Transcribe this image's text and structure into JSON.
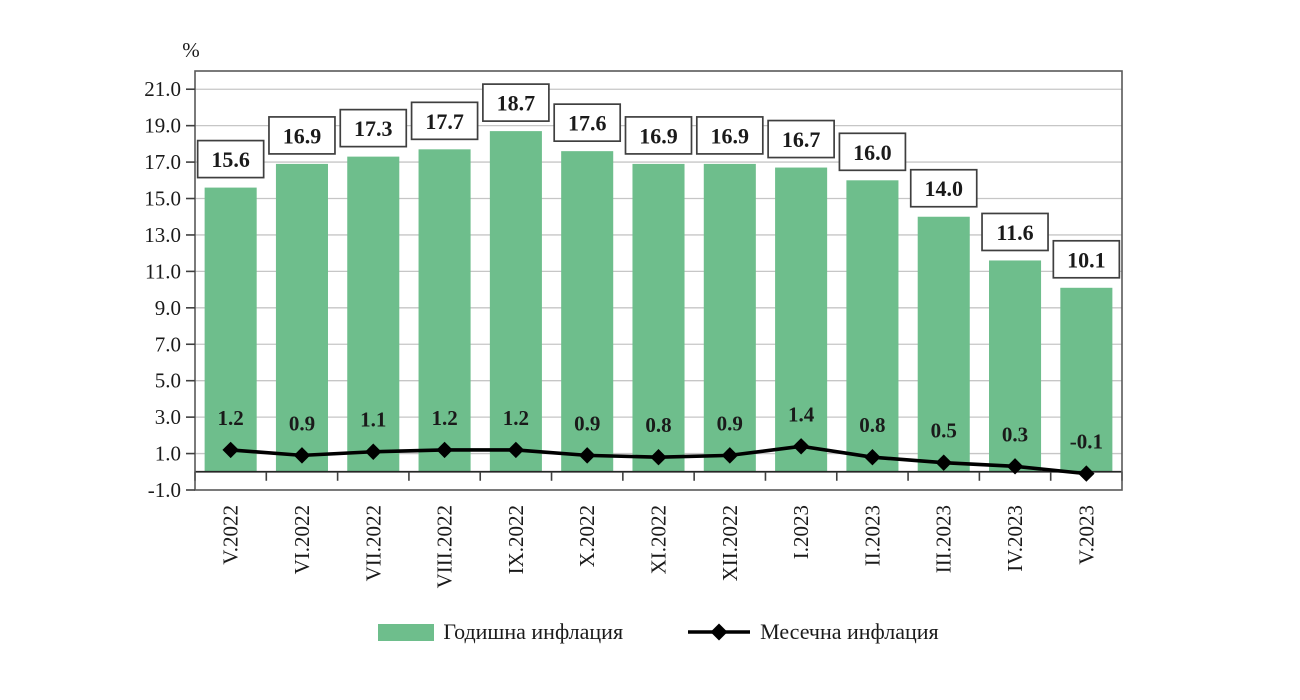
{
  "chart_data": {
    "type": "bar",
    "title": "",
    "categories": [
      "V.2022",
      "VI.2022",
      "VII.2022",
      "VIII.2022",
      "IX.2022",
      "X.2022",
      "XI.2022",
      "XII.2022",
      "I.2023",
      "II.2023",
      "III.2023",
      "IV.2023",
      "V.2023"
    ],
    "series": [
      {
        "name": "Годишна инфлация",
        "type": "bar",
        "color": "#6ebe8c",
        "values": [
          15.6,
          16.9,
          17.3,
          17.7,
          18.7,
          17.6,
          16.9,
          16.9,
          16.7,
          16.0,
          14.0,
          11.6,
          10.1
        ],
        "data_labels": [
          "15.6",
          "16.9",
          "17.3",
          "17.7",
          "18.7",
          "17.6",
          "16.9",
          "16.9",
          "16.7",
          "16.0",
          "14.0",
          "11.6",
          "10.1"
        ],
        "data_label_style": "boxed"
      },
      {
        "name": "Месечна инфлация",
        "type": "line",
        "color": "#000000",
        "marker": "diamond",
        "values": [
          1.2,
          0.9,
          1.1,
          1.2,
          1.2,
          0.9,
          0.8,
          0.9,
          1.4,
          0.8,
          0.5,
          0.3,
          -0.1
        ],
        "data_labels": [
          "1.2",
          "0.9",
          "1.1",
          "1.2",
          "1.2",
          "0.9",
          "0.8",
          "0.9",
          "1.4",
          "0.8",
          "0.5",
          "0.3",
          "-0.1"
        ],
        "data_label_style": "plain"
      }
    ],
    "y_axis": {
      "label": "%",
      "min": -1.0,
      "max": 22.0,
      "tick_start": -1.0,
      "tick_step": 2.0,
      "tick_end": 21.0,
      "tick_labels": [
        "-1.0",
        "1.0",
        "3.0",
        "5.0",
        "7.0",
        "9.0",
        "11.0",
        "13.0",
        "15.0",
        "17.0",
        "19.0",
        "21.0"
      ]
    },
    "grid": true,
    "legend_position": "bottom"
  },
  "colors": {
    "bar": "#6ebe8c",
    "line": "#000000",
    "grid": "#c6c6c6",
    "frame": "#595959",
    "axis": "#262626",
    "tick": "#404040",
    "label_box_border": "#3f3f3f",
    "label_box_fill": "#ffffff",
    "text": "#1a1a1a"
  }
}
